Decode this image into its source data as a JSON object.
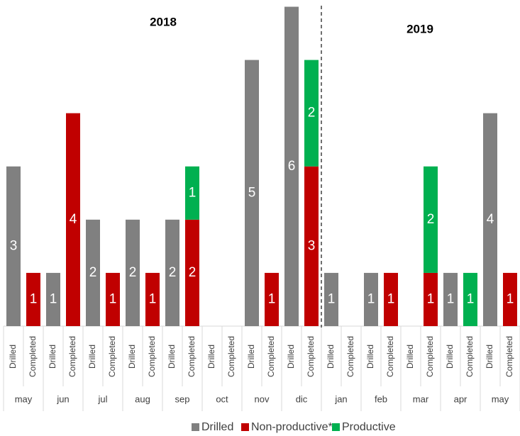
{
  "chart_data": {
    "type": "stacked_bar",
    "annotations": [
      "2018",
      "2019"
    ],
    "groups": [
      "may",
      "jun",
      "jul",
      "aug",
      "sep",
      "oct",
      "nov",
      "dic",
      "jan",
      "feb",
      "mar",
      "apr",
      "may"
    ],
    "categories": [
      "Drilled",
      "Completed",
      "Drilled",
      "Completed",
      "Drilled",
      "Completed",
      "Drilled",
      "Completed",
      "Drilled",
      "Completed",
      "Drilled",
      "Completed",
      "Drilled",
      "Completed",
      "Drilled",
      "Completed",
      "Drilled",
      "Completed",
      "Drilled",
      "Completed",
      "Drilled",
      "Completed",
      "Drilled",
      "Completed",
      "Drilled",
      "Completed"
    ],
    "series": [
      {
        "name": "Drilled",
        "color": "#808080",
        "values": [
          3,
          null,
          1,
          null,
          2,
          null,
          2,
          null,
          2,
          null,
          null,
          null,
          5,
          null,
          6,
          null,
          1,
          null,
          1,
          null,
          null,
          null,
          1,
          null,
          4,
          null
        ]
      },
      {
        "name": "Non-productive*",
        "color": "#c00000",
        "values": [
          null,
          1,
          null,
          4,
          null,
          1,
          null,
          1,
          null,
          2,
          null,
          null,
          null,
          1,
          null,
          3,
          null,
          null,
          null,
          1,
          null,
          1,
          null,
          null,
          null,
          1
        ]
      },
      {
        "name": "Productive",
        "color": "#00b050",
        "values": [
          null,
          null,
          null,
          null,
          null,
          null,
          null,
          null,
          null,
          1,
          null,
          null,
          null,
          null,
          null,
          2,
          null,
          null,
          null,
          null,
          null,
          2,
          null,
          1,
          null,
          null
        ]
      }
    ],
    "ylim": [
      0,
      6.1
    ],
    "legend": "bottom"
  }
}
